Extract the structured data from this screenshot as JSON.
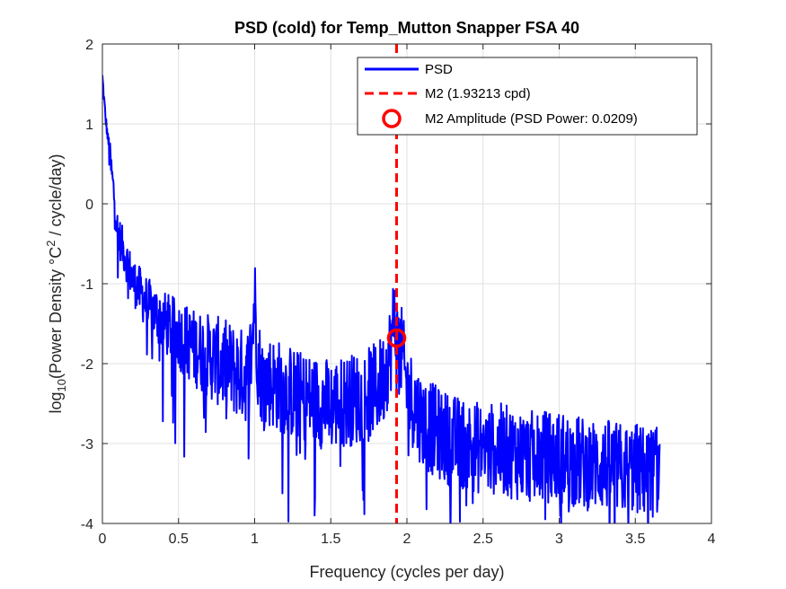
{
  "chart_data": {
    "type": "line",
    "title": "PSD (cold) for Temp_Mutton Snapper FSA 40",
    "xlabel": "Frequency (cycles per day)",
    "ylabel": {
      "prefix": "log",
      "sub": "10",
      "mid": "(Power Density °C",
      "sup": "2",
      "suffix": " / cycle/day)"
    },
    "xlim": [
      0,
      4
    ],
    "ylim": [
      -4,
      2
    ],
    "xticks": [
      0,
      0.5,
      1,
      1.5,
      2,
      2.5,
      3,
      3.5,
      4
    ],
    "xtick_labels": [
      "0",
      "0.5",
      "1",
      "1.5",
      "2",
      "2.5",
      "3",
      "3.5",
      "4"
    ],
    "yticks": [
      -4,
      -3,
      -2,
      -1,
      0,
      1,
      2
    ],
    "ytick_labels": [
      "-4",
      "-3",
      "-2",
      "-1",
      "0",
      "1",
      "2"
    ],
    "grid": true,
    "legend_position": "top-right",
    "series": [
      {
        "name": "PSD",
        "color": "#0000ff",
        "style": "solid-line",
        "x_range": [
          0,
          3.66
        ],
        "x": [
          0,
          0.02,
          0.05,
          0.08,
          0.1,
          0.15,
          0.2,
          0.3,
          0.4,
          0.5,
          0.6,
          0.7,
          0.8,
          0.9,
          0.95,
          0.98,
          1.0,
          1.02,
          1.05,
          1.1,
          1.2,
          1.3,
          1.4,
          1.5,
          1.6,
          1.7,
          1.8,
          1.85,
          1.88,
          1.9,
          1.92,
          1.932,
          1.95,
          1.97,
          2.0,
          2.1,
          2.2,
          2.3,
          2.4,
          2.5,
          2.6,
          2.7,
          2.8,
          2.9,
          3.0,
          3.1,
          3.2,
          3.3,
          3.4,
          3.5,
          3.6,
          3.66
        ],
        "y": [
          1.6,
          1.1,
          0.6,
          0.1,
          -0.3,
          -0.6,
          -0.9,
          -1.2,
          -1.4,
          -1.55,
          -1.7,
          -1.8,
          -1.9,
          -2.0,
          -2.05,
          -1.7,
          -1.05,
          -1.8,
          -2.1,
          -2.1,
          -2.2,
          -2.3,
          -2.35,
          -2.4,
          -2.35,
          -2.3,
          -2.2,
          -2.05,
          -1.8,
          -1.6,
          -1.2,
          -1.68,
          -1.6,
          -1.8,
          -2.2,
          -2.6,
          -2.75,
          -2.85,
          -2.9,
          -2.95,
          -2.95,
          -3.0,
          -3.05,
          -3.05,
          -3.05,
          -3.1,
          -3.15,
          -3.15,
          -3.2,
          -3.2,
          -3.25,
          -3.2
        ]
      },
      {
        "name": "M2 (1.93213 cpd)",
        "color": "#ff0000",
        "style": "dashed-vertical-line",
        "x": 1.93213
      },
      {
        "name": "M2 Amplitude (PSD Power: 0.0209)",
        "color": "#ff0000",
        "style": "circle-marker",
        "x": 1.93213,
        "y": -1.68
      }
    ]
  }
}
